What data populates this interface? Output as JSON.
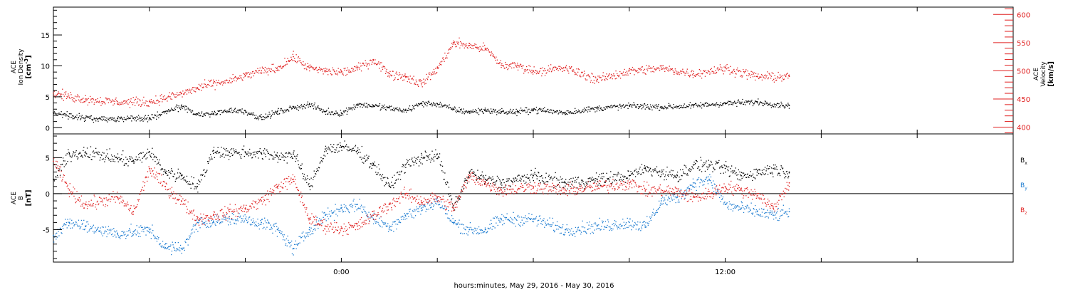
{
  "xlabel": "hours:minutes, May 29, 2016 - May 30, 2016",
  "chart_data": [
    {
      "type": "scatter",
      "panel": "plasma",
      "x_domain_hours": [
        -9,
        21
      ],
      "x_ticks": [
        {
          "hour": 0,
          "label": "0:00"
        },
        {
          "hour": 12,
          "label": "12:00"
        }
      ],
      "grid": false,
      "left_axis": {
        "label_lines": [
          "ACE",
          "Ion Density"
        ],
        "unit_parts": [
          "[cm",
          "-3",
          "]"
        ],
        "ylim": [
          -1,
          19.5
        ],
        "ticks": [
          0,
          5,
          10,
          15
        ],
        "color": "#000000"
      },
      "right_axis": {
        "label_lines": [
          "ACE",
          "Velocity"
        ],
        "unit": "[km/s]",
        "ylim": [
          388,
          613
        ],
        "ticks": [
          400,
          450,
          500,
          550,
          600
        ],
        "color": "#e02020"
      },
      "series": [
        {
          "key": "density",
          "axis": "left",
          "color": "#000000",
          "x": [
            -9.0,
            -8.0,
            -7.0,
            -6.0,
            -5.0,
            -4.5,
            -4.0,
            -3.5,
            -3.0,
            -2.5,
            -2.0,
            -1.5,
            -1.0,
            -0.5,
            0.0,
            0.5,
            1.0,
            1.5,
            2.0,
            2.5,
            3.0,
            3.5,
            4.0,
            4.5,
            5.0,
            5.5,
            6.0,
            7.0,
            8.0,
            9.0,
            10.0,
            11.0,
            12.0,
            13.0,
            14.0
          ],
          "y": [
            2.5,
            1.6,
            1.5,
            1.6,
            3.5,
            2.2,
            2.3,
            2.9,
            2.7,
            1.6,
            2.6,
            3.3,
            3.8,
            2.6,
            2.4,
            3.8,
            3.6,
            3.2,
            2.8,
            4.0,
            3.9,
            3.0,
            2.6,
            2.9,
            2.6,
            2.6,
            3.0,
            2.5,
            3.2,
            3.6,
            3.4,
            3.6,
            4.0,
            4.2,
            3.6
          ]
        },
        {
          "key": "velocity",
          "axis": "right",
          "color": "#e02020",
          "x": [
            -9.0,
            -8.0,
            -7.0,
            -6.0,
            -5.0,
            -4.5,
            -4.0,
            -3.5,
            -3.0,
            -2.5,
            -2.0,
            -1.5,
            -1.0,
            -0.5,
            0.0,
            0.5,
            1.0,
            1.5,
            2.0,
            2.5,
            3.0,
            3.5,
            4.0,
            4.5,
            5.0,
            5.5,
            6.0,
            7.0,
            8.0,
            9.0,
            10.0,
            11.0,
            12.0,
            13.0,
            14.0
          ],
          "y": [
            460,
            450,
            445,
            445,
            460,
            470,
            478,
            482,
            492,
            500,
            505,
            525,
            505,
            500,
            498,
            505,
            520,
            495,
            490,
            478,
            505,
            550,
            545,
            540,
            510,
            510,
            500,
            505,
            485,
            500,
            505,
            495,
            505,
            490,
            490
          ]
        }
      ]
    },
    {
      "type": "scatter",
      "panel": "magnetic-field",
      "x_domain_hours": [
        -9,
        21
      ],
      "x_ticks": [
        {
          "hour": 0,
          "label": "0:00"
        },
        {
          "hour": 12,
          "label": "12:00"
        }
      ],
      "grid": false,
      "left_axis": {
        "label_lines": [
          "ACE",
          "B"
        ],
        "unit": "[nT]",
        "ylim": [
          -9.5,
          8.3
        ],
        "ticks": [
          -5,
          0,
          5
        ],
        "color": "#000000"
      },
      "zero_line": true,
      "series": [
        {
          "key": "bx",
          "legend_main": "B",
          "legend_sub": "x",
          "color": "#000000",
          "x": [
            -9.0,
            -8.5,
            -8.0,
            -7.0,
            -6.5,
            -6.0,
            -5.5,
            -5.0,
            -4.5,
            -4.0,
            -3.5,
            -3.0,
            -2.5,
            -2.0,
            -1.5,
            -1.0,
            -0.5,
            0.0,
            0.5,
            1.0,
            1.5,
            2.0,
            2.5,
            3.0,
            3.5,
            4.0,
            4.5,
            5.0,
            6.0,
            7.0,
            8.0,
            9.0,
            9.5,
            10.0,
            10.5,
            11.0,
            11.5,
            12.0,
            12.5,
            13.0,
            13.5,
            14.0
          ],
          "y": [
            2.0,
            5.5,
            5.8,
            4.9,
            4.6,
            5.8,
            3.0,
            2.5,
            1.0,
            6.0,
            5.7,
            5.8,
            5.6,
            5.2,
            5.5,
            1.0,
            6.2,
            6.5,
            6.0,
            4.0,
            1.0,
            4.0,
            5.0,
            5.5,
            -2.0,
            3.0,
            2.0,
            1.5,
            2.5,
            1.5,
            2.0,
            2.5,
            3.5,
            3.0,
            2.5,
            4.0,
            4.0,
            3.5,
            2.5,
            3.0,
            3.5,
            3.0
          ]
        },
        {
          "key": "by",
          "legend_main": "B",
          "legend_sub": "y",
          "color": "#1a7ad0",
          "x": [
            -9.0,
            -8.5,
            -8.0,
            -7.0,
            -6.5,
            -6.0,
            -5.5,
            -5.0,
            -4.5,
            -4.0,
            -3.5,
            -3.0,
            -2.5,
            -2.0,
            -1.5,
            -1.0,
            -0.5,
            0.0,
            0.5,
            1.0,
            1.5,
            2.0,
            2.5,
            3.0,
            3.5,
            4.0,
            4.5,
            5.0,
            6.0,
            7.0,
            8.0,
            9.0,
            9.5,
            10.0,
            10.5,
            11.0,
            11.5,
            12.0,
            12.5,
            13.0,
            13.5,
            14.0
          ],
          "y": [
            -5.8,
            -4.0,
            -4.5,
            -5.5,
            -5.3,
            -5.0,
            -7.5,
            -7.6,
            -4.0,
            -3.8,
            -3.5,
            -3.5,
            -4.0,
            -5.0,
            -7.6,
            -5.0,
            -3.0,
            -2.0,
            -1.5,
            -3.5,
            -4.5,
            -3.0,
            -2.0,
            -1.0,
            -4.0,
            -5.0,
            -5.0,
            -3.5,
            -3.5,
            -5.0,
            -4.5,
            -4.0,
            -4.5,
            -1.0,
            -0.5,
            1.5,
            2.0,
            -1.5,
            -2.0,
            -2.5,
            -3.0,
            -2.5
          ]
        },
        {
          "key": "bz",
          "legend_main": "B",
          "legend_sub": "z",
          "color": "#e02020",
          "x": [
            -9.0,
            -8.5,
            -8.0,
            -7.0,
            -6.5,
            -6.0,
            -5.5,
            -5.0,
            -4.5,
            -4.0,
            -3.5,
            -3.0,
            -2.5,
            -2.0,
            -1.5,
            -1.0,
            -0.5,
            0.0,
            0.5,
            1.0,
            1.5,
            2.0,
            2.5,
            3.0,
            3.5,
            4.0,
            4.5,
            5.0,
            6.0,
            7.0,
            8.0,
            9.0,
            9.5,
            10.0,
            10.5,
            11.0,
            11.5,
            12.0,
            12.5,
            13.0,
            13.5,
            14.0
          ],
          "y": [
            4.5,
            0.5,
            -1.5,
            -0.5,
            -2.5,
            3.5,
            1.0,
            -1.0,
            -3.5,
            -3.0,
            -2.5,
            -2.0,
            -1.0,
            1.0,
            2.0,
            -3.5,
            -4.5,
            -4.8,
            -4.5,
            -3.0,
            -1.5,
            0.0,
            -1.0,
            -0.5,
            -2.0,
            2.5,
            1.5,
            0.5,
            1.0,
            0.5,
            1.0,
            1.5,
            0.5,
            0.5,
            0.3,
            -0.5,
            0.0,
            1.0,
            0.5,
            0.0,
            -2.0,
            1.5
          ]
        }
      ]
    }
  ]
}
